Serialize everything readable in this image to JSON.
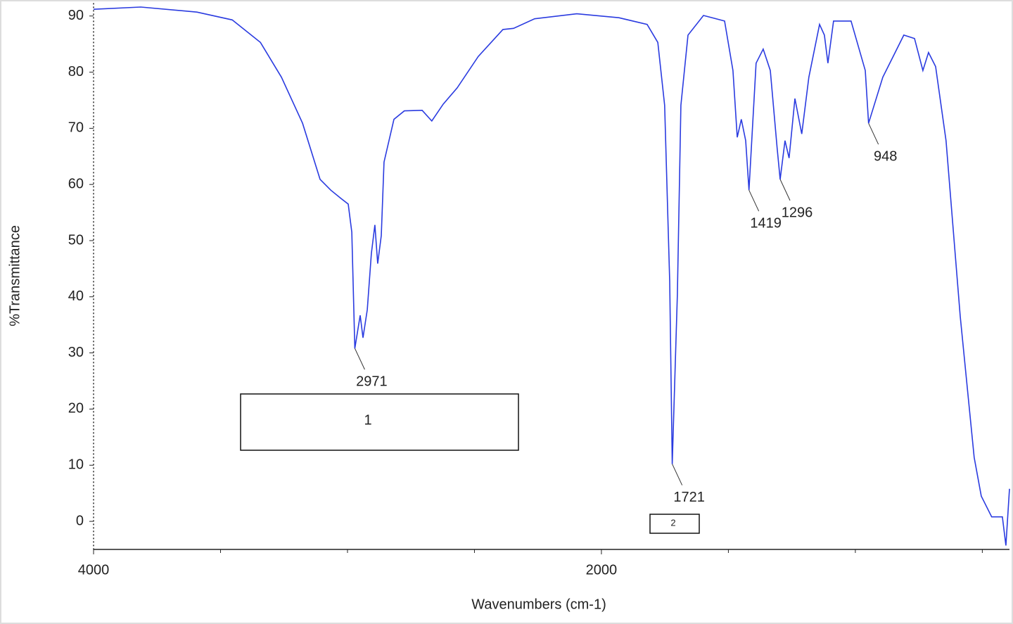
{
  "chart_data": {
    "type": "line",
    "x_label": "Wavenumbers (cm-1)",
    "y_label": "%Transmittance",
    "x": [
      4000,
      3814,
      3593,
      3454,
      3343,
      3260,
      3177,
      3108,
      3066,
      3025,
      2997,
      2983,
      2971,
      2950,
      2939,
      2922,
      2906,
      2892,
      2881,
      2867,
      2856,
      2817,
      2776,
      2706,
      2668,
      2623,
      2568,
      2485,
      2388,
      2346,
      2263,
      2097,
      1931,
      1820,
      1778,
      1751,
      1731,
      1721,
      1701,
      1687,
      1659,
      1598,
      1515,
      1482,
      1465,
      1449,
      1432,
      1419,
      1391,
      1363,
      1335,
      1308,
      1296,
      1277,
      1261,
      1238,
      1211,
      1183,
      1141,
      1122,
      1108,
      1086,
      1017,
      961,
      948,
      892,
      809,
      767,
      734,
      712,
      684,
      643,
      587,
      532,
      504,
      463,
      421,
      407,
      393
    ],
    "values": [
      91.2,
      91.6,
      90.7,
      89.3,
      85.3,
      79.1,
      70.9,
      60.9,
      59.0,
      57.5,
      56.5,
      51.5,
      30.8,
      36.7,
      32.7,
      37.7,
      47.7,
      52.8,
      45.9,
      50.9,
      64.0,
      71.6,
      73.1,
      73.2,
      71.3,
      74.3,
      77.2,
      82.8,
      87.6,
      87.8,
      89.5,
      90.4,
      89.7,
      88.5,
      85.3,
      74.1,
      42.7,
      10.2,
      40.4,
      74.1,
      86.6,
      90.1,
      89.1,
      80.3,
      68.4,
      71.6,
      67.8,
      59.0,
      81.6,
      84.1,
      80.3,
      66.5,
      60.9,
      67.8,
      64.7,
      75.3,
      69.0,
      79.1,
      88.5,
      86.6,
      81.6,
      89.1,
      89.1,
      80.3,
      70.9,
      79.1,
      86.6,
      86.0,
      80.3,
      83.5,
      81.0,
      67.8,
      36.5,
      11.4,
      4.5,
      0.8,
      0.8,
      -4.3,
      5.8
    ],
    "color": "#2a3be0",
    "xlim": [
      4000,
      393
    ],
    "xticks": [
      4000,
      2000
    ],
    "xminorticks": [
      3500,
      3000,
      2500,
      1500,
      1000,
      500
    ],
    "ylim": [
      -5,
      92.3
    ],
    "yticks": [
      0,
      10,
      20,
      30,
      40,
      50,
      60,
      70,
      80,
      90
    ],
    "peak_labels": [
      {
        "text": "2971",
        "x": 2971,
        "y": 30.8
      },
      {
        "text": "1721",
        "x": 1721,
        "y": 10.2
      },
      {
        "text": "1419",
        "x": 1419,
        "y": 59.0
      },
      {
        "text": "1296",
        "x": 1296,
        "y": 60.9
      },
      {
        "text": "948",
        "x": 948,
        "y": 70.9
      }
    ],
    "boxes": [
      "1",
      "2"
    ]
  }
}
